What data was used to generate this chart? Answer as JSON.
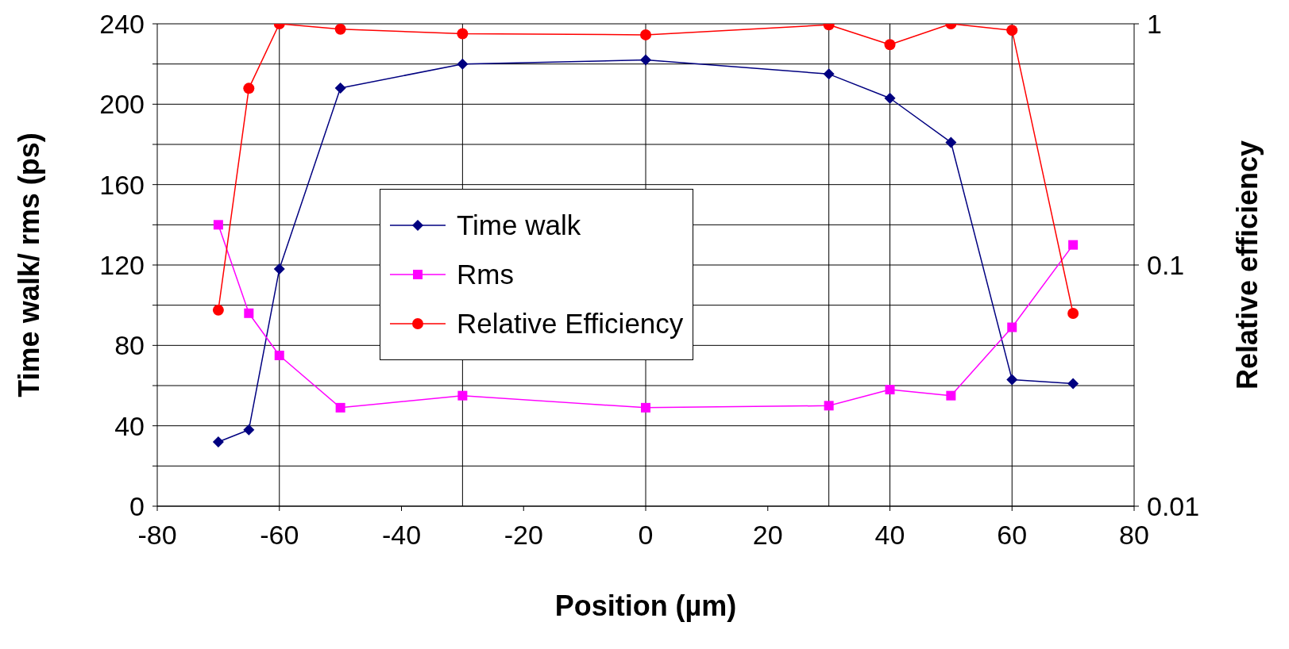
{
  "chart_data": {
    "type": "line",
    "xlabel": "Position (µm)",
    "ylabel": "Time walk/ rms (ps)",
    "y2label": "Relative efficiency",
    "x": [
      -70,
      -65,
      -60,
      -50,
      -30,
      0,
      30,
      40,
      50,
      60,
      70
    ],
    "xlim": [
      -80,
      80
    ],
    "xticks": [
      -80,
      -60,
      -40,
      -20,
      0,
      20,
      40,
      60,
      80
    ],
    "ylim": [
      0,
      240
    ],
    "yticks": [
      0,
      {
        "value": 20,
        "label": null
      },
      40,
      {
        "value": 60,
        "label": null
      },
      80,
      {
        "value": 100,
        "label": null
      },
      120,
      {
        "value": 140,
        "label": null
      },
      160,
      {
        "value": 180,
        "label": null
      },
      200,
      {
        "value": 220,
        "label": null
      },
      240
    ],
    "y2lim": [
      0.01,
      1
    ],
    "y2ticks": [
      0.01,
      0.1,
      1
    ],
    "log": "y2",
    "grid": "y",
    "legend": "left",
    "ref_lines": [
      {
        "axis": "x",
        "value": -60,
        "color": "#000000"
      },
      {
        "axis": "x",
        "value": -30,
        "color": "#000000"
      },
      {
        "axis": "x",
        "value": 0,
        "color": "#000000"
      },
      {
        "axis": "x",
        "value": 30,
        "color": "#000000"
      },
      {
        "axis": "x",
        "value": 40,
        "color": "#000000"
      },
      {
        "axis": "x",
        "value": 60,
        "color": "#000000"
      }
    ],
    "series": [
      {
        "name": "Time walk",
        "color": "#000080",
        "marker": "diamond",
        "values": [
          32,
          38,
          118,
          208,
          220,
          222,
          215,
          203,
          181,
          63,
          61
        ]
      },
      {
        "name": "Rms",
        "color": "#ff00ff",
        "marker": "square",
        "values": [
          140,
          96,
          75,
          49,
          55,
          49,
          50,
          58,
          55,
          89,
          130
        ]
      },
      {
        "name": "Relative Efficiency",
        "color": "#ff0000",
        "marker": "circle",
        "axis": "y2",
        "values": [
          0.065,
          0.54,
          1.0,
          0.95,
          0.91,
          0.9,
          0.99,
          0.82,
          1.0,
          0.94,
          0.063
        ]
      }
    ]
  }
}
